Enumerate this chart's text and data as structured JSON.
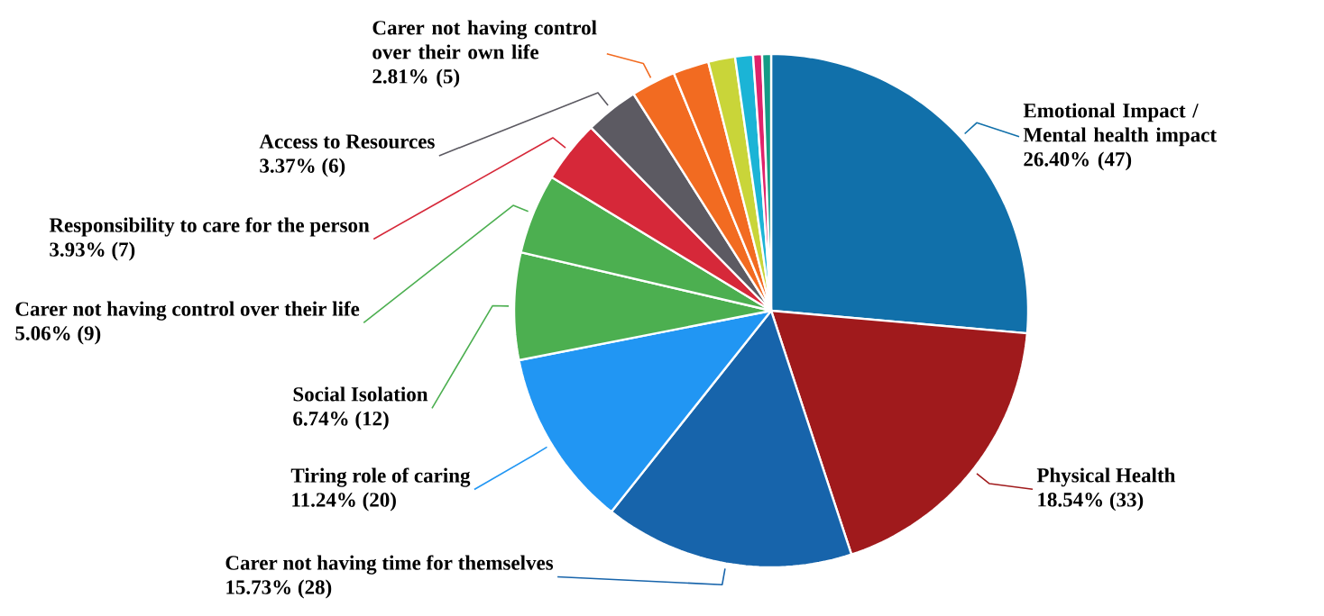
{
  "chart_data": {
    "type": "pie",
    "categories": [
      "Emotional Impact / Mental health impact",
      "Physical Health",
      "Carer not having time for themselves",
      "Tiring role of caring",
      "Social Isolation",
      "Carer not having control over their life",
      "Responsibility to care for the person",
      "Access to Resources",
      "Carer not having control over their own life",
      null,
      null,
      null,
      null,
      null
    ],
    "values": [
      47,
      33,
      28,
      20,
      12,
      9,
      7,
      6,
      5,
      4,
      3,
      2,
      1,
      1
    ],
    "value_labels": [
      "26.40% (47)",
      "18.54% (33)",
      "15.73% (28)",
      "11.24% (20)",
      "6.74% (12)",
      "5.06% (9)",
      "3.93% (7)",
      "3.37% (6)",
      "2.81% (5)",
      null,
      null,
      null,
      null,
      null
    ],
    "colors": [
      "#1170aa",
      "#a01a1c",
      "#1764ab",
      "#2196f3",
      "#4caf50",
      "#4caf50",
      "#d62839",
      "#5c5a62",
      "#f26b21",
      "#f26b21",
      "#c9d539",
      "#1bb4d6",
      "#e0236b",
      "#159b86"
    ]
  }
}
